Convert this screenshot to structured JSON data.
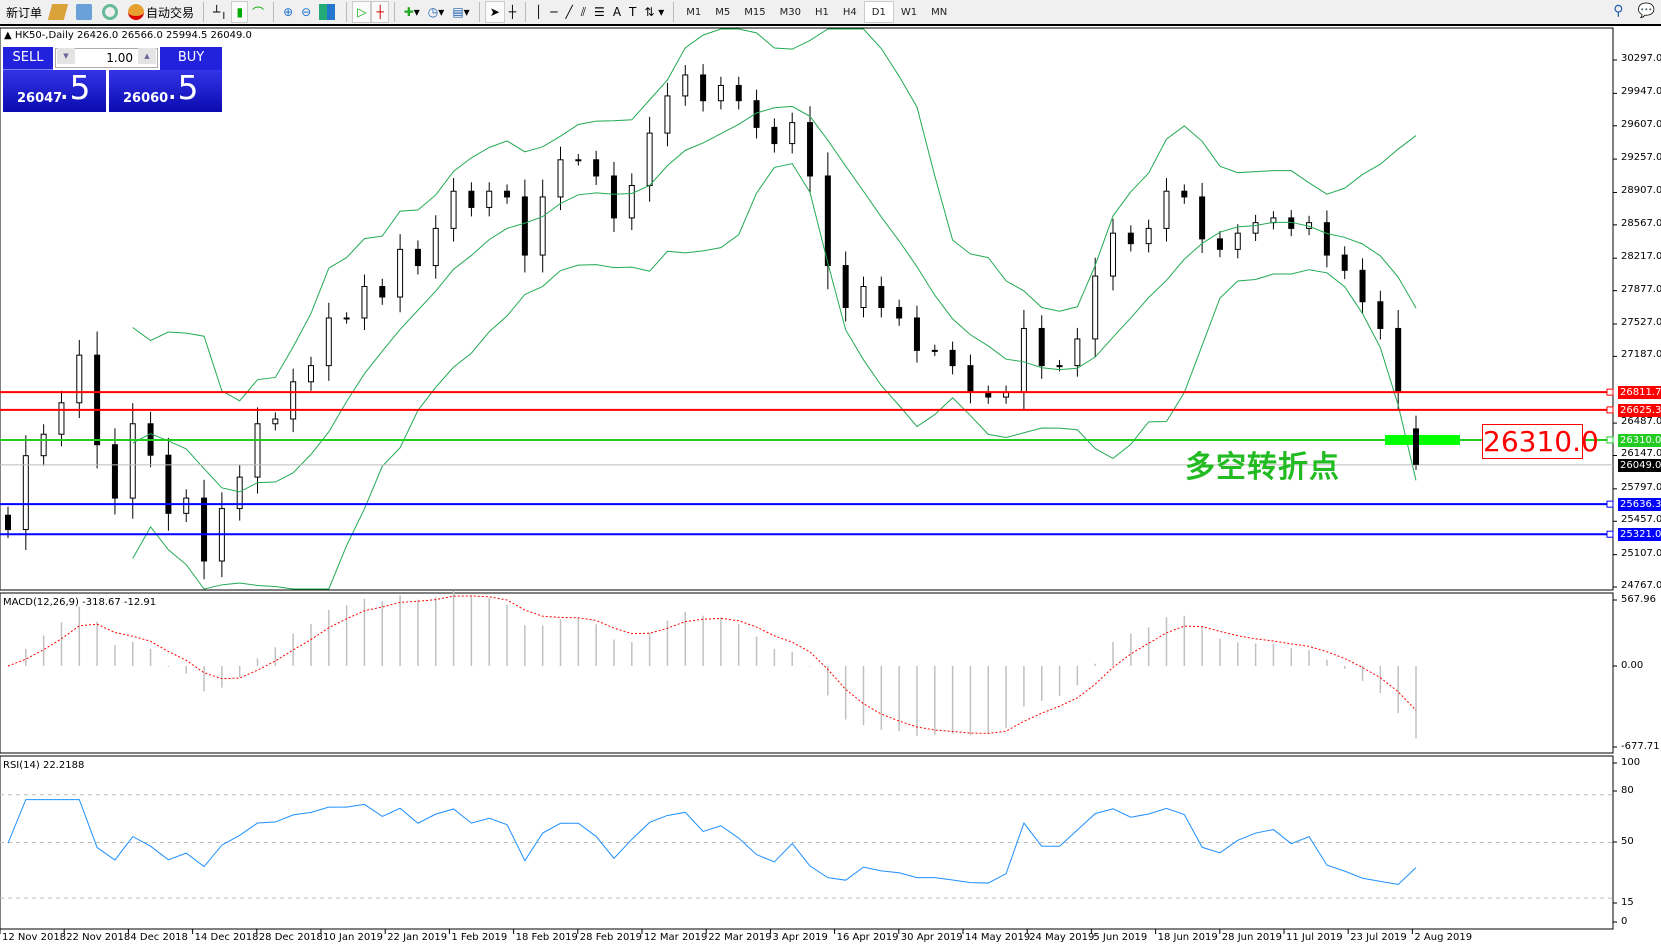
{
  "toolbar": {
    "new_order": "新订单",
    "auto_trading": "自动交易",
    "timeframes": [
      "M1",
      "M5",
      "M15",
      "M30",
      "H1",
      "H4",
      "D1",
      "W1",
      "MN"
    ],
    "active_timeframe": "D1"
  },
  "symbol_info": "HK50-,Daily  26426.0 26566.0 25994.5 26049.0",
  "trade_panel": {
    "sell_label": "SELL",
    "buy_label": "BUY",
    "lot": "1.00",
    "sell_price_main": "26047",
    "sell_price_frac": ".5",
    "buy_price_main": "26060",
    "buy_price_frac": ".5"
  },
  "price_axis": [
    "30297.0",
    "29947.0",
    "29607.0",
    "29257.0",
    "28907.0",
    "28567.0",
    "28217.0",
    "27877.0",
    "27527.0",
    "27187.0",
    "26487.0",
    "26147.0",
    "25797.0",
    "25457.0",
    "25107.0",
    "24767.0"
  ],
  "levels": [
    {
      "label": "26811.7",
      "value": 26811.7,
      "color": "#ff0000"
    },
    {
      "label": "26625.3",
      "value": 26625.3,
      "color": "#ff0000"
    },
    {
      "label": "26310.0",
      "value": 26310.0,
      "color": "#22cc22"
    },
    {
      "label": "25636.3",
      "value": 25636.3,
      "color": "#0000ff"
    },
    {
      "label": "25321.0",
      "value": 25321.0,
      "color": "#0000ff"
    }
  ],
  "current_price": {
    "label": "26049.0",
    "value": 26049.0
  },
  "annotation": {
    "text": "多空转折点",
    "level_label": "26310.0"
  },
  "macd": {
    "label": "MACD(12,26,9) -318.67 -12.91",
    "axis": [
      "567.96",
      "0.00",
      "-677.71"
    ]
  },
  "rsi": {
    "label": "RSI(14) 22.2188",
    "axis": [
      "100",
      "80",
      "50",
      "15",
      "0"
    ],
    "levels": [
      80,
      50,
      15
    ]
  },
  "dates": [
    "12 Nov 2018",
    "22 Nov 2018",
    "4 Dec 2018",
    "14 Dec 2018",
    "28 Dec 2018",
    "10 Jan 2019",
    "22 Jan 2019",
    "1 Feb 2019",
    "18 Feb 2019",
    "28 Feb 2019",
    "12 Mar 2019",
    "22 Mar 2019",
    "3 Apr 2019",
    "16 Apr 2019",
    "30 Apr 2019",
    "14 May 2019",
    "24 May 2019",
    "5 Jun 2019",
    "18 Jun 2019",
    "28 Jun 2019",
    "11 Jul 2019",
    "23 Jul 2019",
    "2 Aug 2019"
  ],
  "colors": {
    "sell_buy": "#2222dd",
    "bands": "#22aa55",
    "macd_signal": "#ff0000",
    "macd_hist": "#c0c0c0",
    "rsi": "#1e90ff"
  },
  "chart_data": {
    "type": "candlestick",
    "symbol": "HK50-",
    "timeframe": "Daily",
    "ylim": [
      24767,
      30297
    ],
    "closes": [
      25370,
      26145,
      26370,
      26700,
      27200,
      26260,
      25700,
      26480,
      26150,
      25540,
      25700,
      25040,
      25590,
      25920,
      26480,
      26530,
      26920,
      27090,
      27590,
      27590,
      27920,
      27810,
      28310,
      28140,
      28530,
      28920,
      28750,
      28920,
      28860,
      28250,
      28860,
      29250,
      29250,
      29080,
      28640,
      28980,
      29530,
      29920,
      30140,
      29870,
      30030,
      29870,
      29590,
      29420,
      29640,
      29080,
      28140,
      27700,
      27920,
      27700,
      27590,
      27250,
      27250,
      27090,
      26810,
      26760,
      26810,
      27480,
      27090,
      27090,
      27370,
      28030,
      28480,
      28370,
      28530,
      28920,
      28860,
      28420,
      28310,
      28480,
      28590,
      28640,
      28530,
      28590,
      28250,
      28090,
      27760,
      27480,
      26810,
      26049
    ],
    "last_bar": {
      "open": 26426.0,
      "high": 26566.0,
      "low": 25994.5,
      "close": 26049.0
    }
  }
}
